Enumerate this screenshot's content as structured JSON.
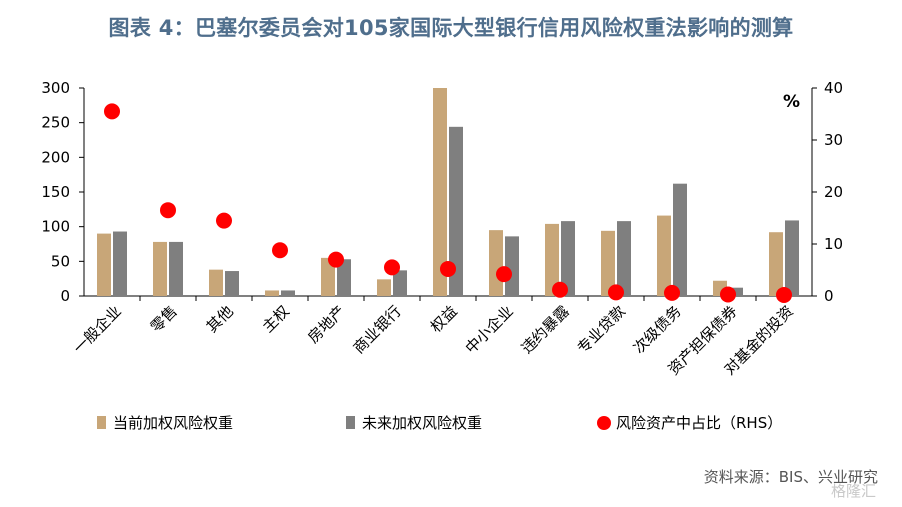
{
  "title": "图表 4：巴塞尔委员会对105家国际大型银行信用风险权重法影响的测算",
  "source": "资料来源：BIS、兴业研究",
  "watermark": "格隆汇",
  "colors": {
    "current": "#c8a678",
    "future": "#7f7f7f",
    "share": "#ff0000"
  },
  "chart_data": {
    "type": "bar",
    "categories": [
      "一般企业",
      "零售",
      "其他",
      "主权",
      "房地产",
      "商业银行",
      "权益",
      "中小企业",
      "违约暴露",
      "专业贷款",
      "次级债务",
      "资产担保债券",
      "对基金的投资"
    ],
    "series": [
      {
        "name": "当前加权风险权重",
        "type": "bar",
        "axis": "left",
        "color": "#c8a678",
        "values": [
          90,
          78,
          38,
          8,
          55,
          24,
          300,
          95,
          104,
          94,
          116,
          22,
          92
        ]
      },
      {
        "name": "未来加权风险权重",
        "type": "bar",
        "axis": "left",
        "color": "#7f7f7f",
        "values": [
          93,
          78,
          36,
          8,
          53,
          37,
          244,
          86,
          108,
          108,
          162,
          12,
          109
        ]
      },
      {
        "name": "风险资产中占比（RHS）",
        "type": "scatter",
        "axis": "right",
        "color": "#ff0000",
        "values": [
          35.5,
          16.5,
          14.5,
          8.8,
          7,
          5.5,
          5.2,
          4.2,
          1.2,
          0.7,
          0.6,
          0.3,
          0.2
        ]
      }
    ],
    "y_left": {
      "min": 0,
      "max": 300,
      "ticks": [
        0,
        50,
        100,
        150,
        200,
        250,
        300
      ]
    },
    "y_right": {
      "min": 0,
      "max": 40,
      "ticks": [
        0,
        10,
        20,
        30,
        40
      ],
      "unit": "%"
    },
    "legend": "bottom",
    "grid": false
  }
}
